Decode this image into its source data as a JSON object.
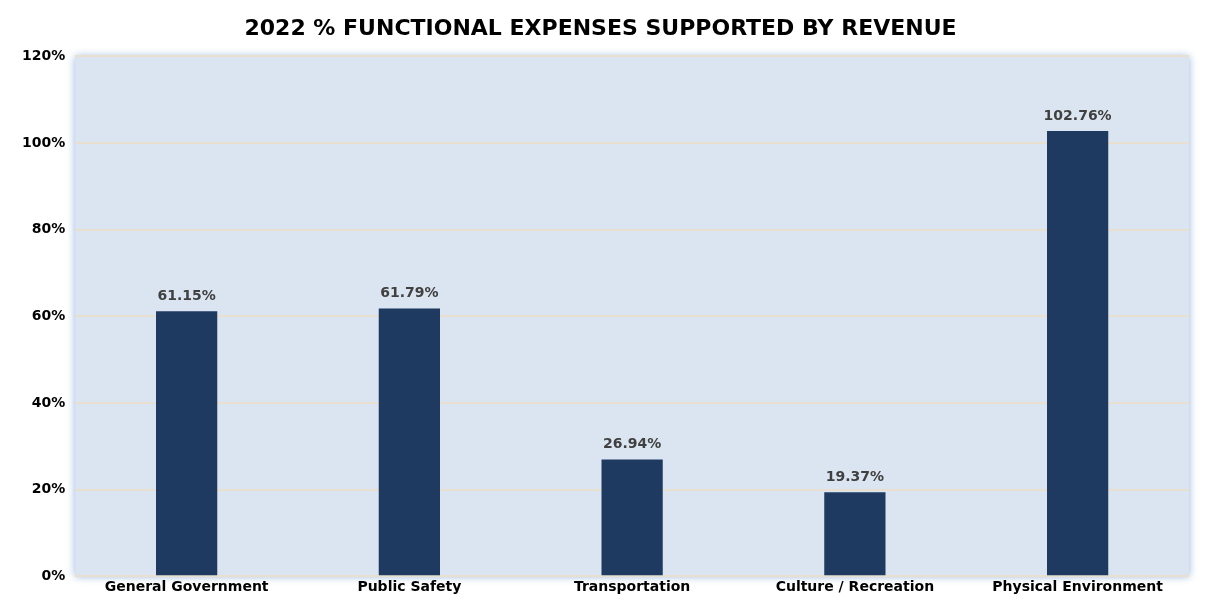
{
  "chart_data": {
    "type": "bar",
    "title": "2022 % FUNCTIONAL EXPENSES SUPPORTED BY REVENUE",
    "categories": [
      "General Government",
      "Public Safety",
      "Transportation",
      "Culture / Recreation",
      "Physical Environment"
    ],
    "values": [
      61.15,
      61.79,
      26.94,
      19.37,
      102.76
    ],
    "value_labels": [
      "61.15%",
      "61.79%",
      "26.94%",
      "19.37%",
      "102.76%"
    ],
    "color": "#1f3a60",
    "ylim": [
      0,
      120
    ],
    "yticks": [
      {
        "value": 0,
        "label": "0%"
      },
      {
        "value": 20,
        "label": "20%"
      },
      {
        "value": 40,
        "label": "40%"
      },
      {
        "value": 60,
        "label": "60%"
      },
      {
        "value": 80,
        "label": "80%"
      },
      {
        "value": 100,
        "label": "100%"
      },
      {
        "value": 120,
        "label": "120%"
      }
    ],
    "grid": "y",
    "legend": false
  }
}
